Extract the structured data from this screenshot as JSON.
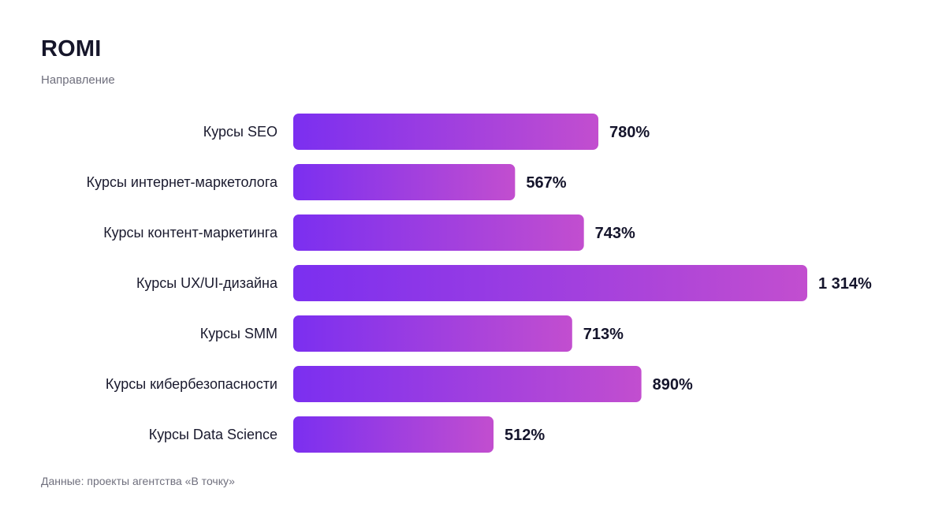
{
  "page": {
    "title": "ROMI",
    "subtitle": "Направление",
    "footer": "Данные: проекты агентства «В точку»"
  },
  "colors": {
    "bar_start": "#7b2ff0",
    "bar_end": "#c24ecf",
    "text": "#14142b",
    "muted": "#6f6f7d"
  },
  "chart_data": {
    "type": "bar",
    "orientation": "horizontal",
    "title": "ROMI",
    "subtitle": "Направление",
    "categories": [
      "Курсы SEO",
      "Курсы интернет-маркетолога",
      "Курсы контент-маркетинга",
      "Курсы UX/UI-дизайна",
      "Курсы SMM",
      "Курсы кибербезопасности",
      "Курсы Data Science"
    ],
    "values": [
      780,
      567,
      743,
      1314,
      713,
      890,
      512
    ],
    "value_labels": [
      "780%",
      "567%",
      "743%",
      "1 314%",
      "713%",
      "890%",
      "512%"
    ],
    "unit": "%",
    "xlim": [
      0,
      1314
    ],
    "grid": false,
    "legend": "none"
  }
}
